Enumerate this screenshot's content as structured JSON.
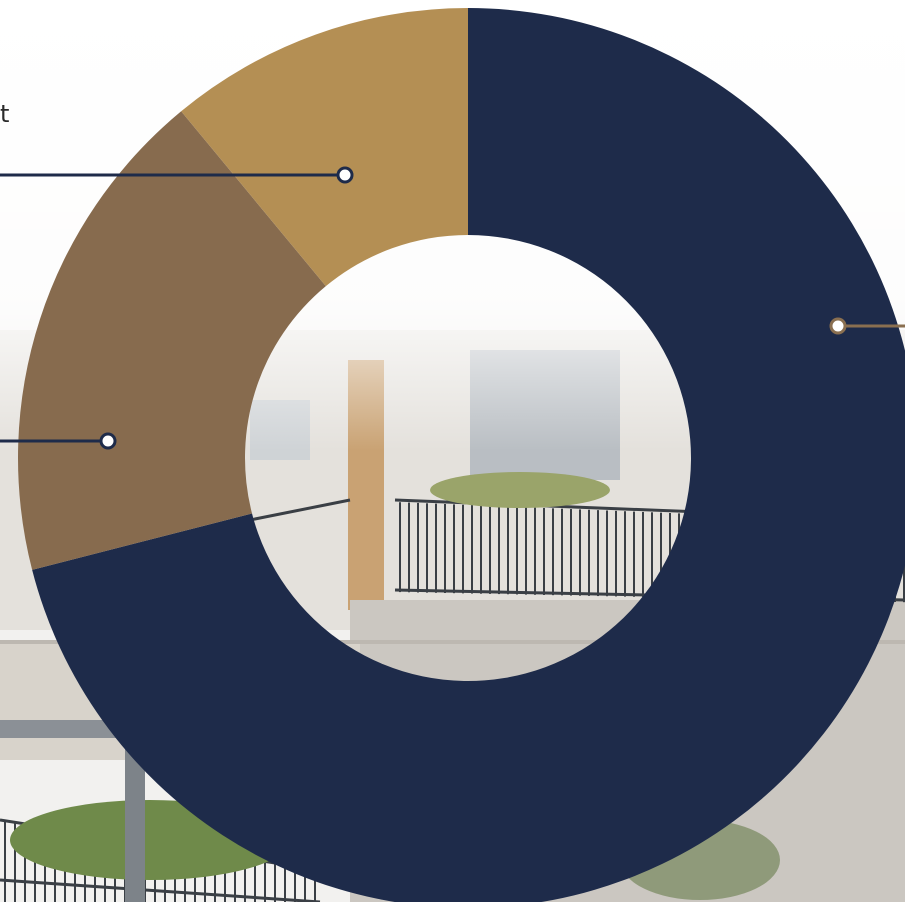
{
  "chart_data": {
    "type": "pie",
    "donut": true,
    "start_angle_deg": 0,
    "direction": "clockwise",
    "slices": [
      {
        "value": 71,
        "color": "#1e2b4a",
        "callout_color": "#8a6f50"
      },
      {
        "value": 18,
        "color": "#876b4e",
        "callout_color": "#1e2b4a"
      },
      {
        "value": 11,
        "color": "#b48f54",
        "callout_color": "#1e2b4a"
      }
    ],
    "visible_label_fragment": "t"
  },
  "background": {
    "description_colors": {
      "sky": "#f4f3f1",
      "wall": "#d9d5cf",
      "railing": "#3a3f45",
      "plants": "#6f8a4a"
    }
  }
}
